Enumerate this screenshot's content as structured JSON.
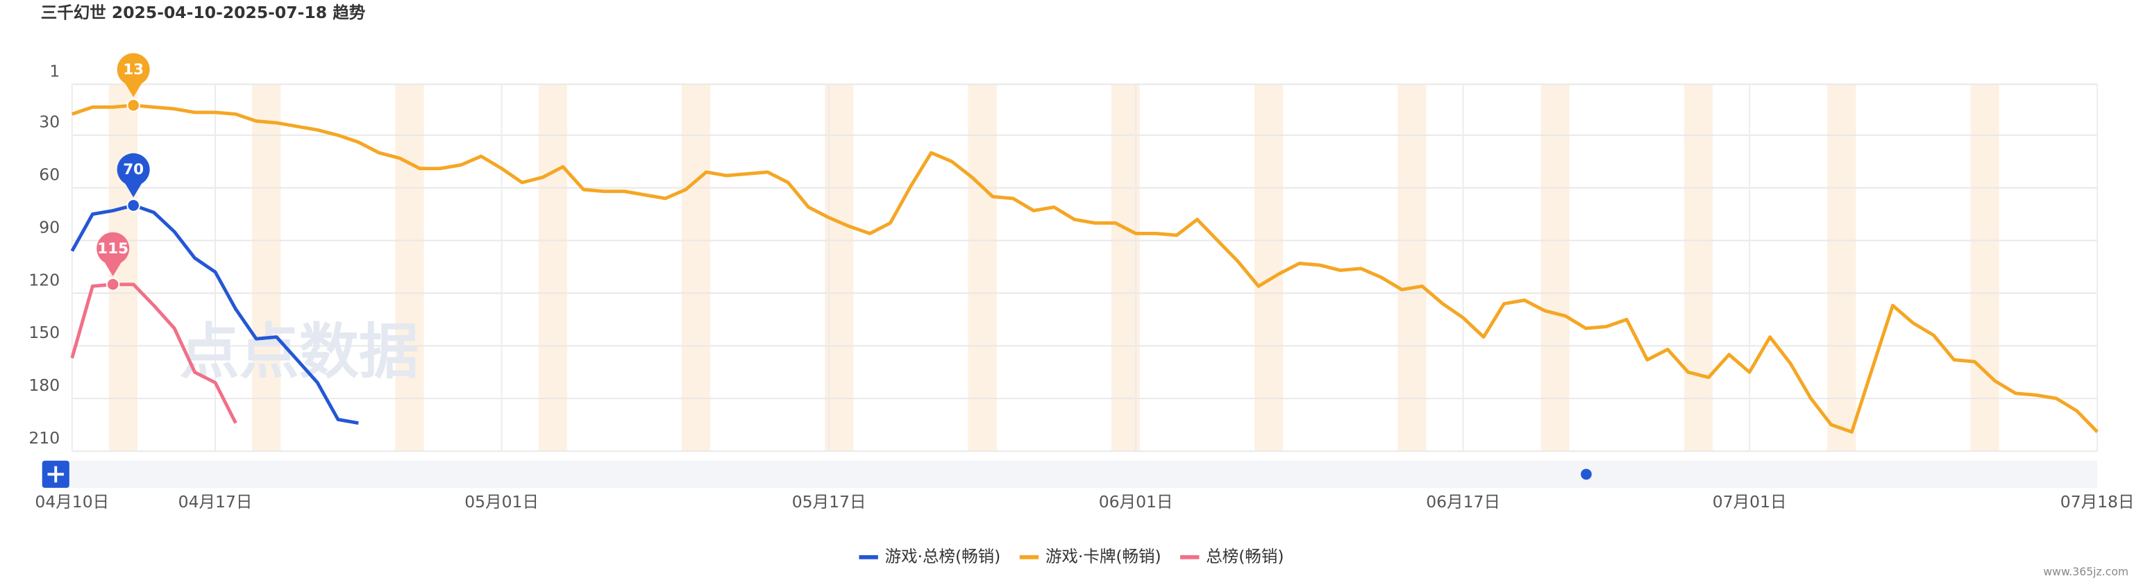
{
  "chart_data": {
    "type": "line",
    "title": "三千幻世 2025-04-10-2025-07-18 趋势",
    "watermark": "点点数据",
    "footer": "www.365jz.com",
    "x": [
      "2025-04-10",
      "2025-04-11",
      "2025-04-12",
      "2025-04-13",
      "2025-04-14",
      "2025-04-15",
      "2025-04-16",
      "2025-04-17",
      "2025-04-18",
      "2025-04-19",
      "2025-04-20",
      "2025-04-21",
      "2025-04-22",
      "2025-04-23",
      "2025-04-24",
      "2025-04-25",
      "2025-04-26",
      "2025-04-27",
      "2025-04-28",
      "2025-04-29",
      "2025-04-30",
      "2025-05-01",
      "2025-05-02",
      "2025-05-03",
      "2025-05-04",
      "2025-05-05",
      "2025-05-06",
      "2025-05-07",
      "2025-05-08",
      "2025-05-09",
      "2025-05-10",
      "2025-05-11",
      "2025-05-12",
      "2025-05-13",
      "2025-05-14",
      "2025-05-15",
      "2025-05-16",
      "2025-05-17",
      "2025-05-18",
      "2025-05-19",
      "2025-05-20",
      "2025-05-21",
      "2025-05-22",
      "2025-05-23",
      "2025-05-24",
      "2025-05-25",
      "2025-05-26",
      "2025-05-27",
      "2025-05-28",
      "2025-05-29",
      "2025-05-30",
      "2025-05-31",
      "2025-06-01",
      "2025-06-02",
      "2025-06-03",
      "2025-06-04",
      "2025-06-05",
      "2025-06-06",
      "2025-06-07",
      "2025-06-08",
      "2025-06-09",
      "2025-06-10",
      "2025-06-11",
      "2025-06-12",
      "2025-06-13",
      "2025-06-14",
      "2025-06-15",
      "2025-06-16",
      "2025-06-17",
      "2025-06-18",
      "2025-06-19",
      "2025-06-20",
      "2025-06-21",
      "2025-06-22",
      "2025-06-23",
      "2025-06-24",
      "2025-06-25",
      "2025-06-26",
      "2025-06-27",
      "2025-06-28",
      "2025-06-29",
      "2025-06-30",
      "2025-07-01",
      "2025-07-02",
      "2025-07-03",
      "2025-07-04",
      "2025-07-05",
      "2025-07-06",
      "2025-07-07",
      "2025-07-08",
      "2025-07-09",
      "2025-07-10",
      "2025-07-11",
      "2025-07-12",
      "2025-07-13",
      "2025-07-14",
      "2025-07-15",
      "2025-07-16",
      "2025-07-17",
      "2025-07-18"
    ],
    "xlim": [
      "2025-04-10",
      "2025-07-18"
    ],
    "xticks": [
      {
        "value": "2025-04-10",
        "label": "04月10日"
      },
      {
        "value": "2025-04-17",
        "label": "04月17日"
      },
      {
        "value": "2025-05-01",
        "label": "05月01日"
      },
      {
        "value": "2025-05-17",
        "label": "05月17日"
      },
      {
        "value": "2025-06-01",
        "label": "06月01日"
      },
      {
        "value": "2025-06-17",
        "label": "06月17日"
      },
      {
        "value": "2025-07-01",
        "label": "07月01日"
      },
      {
        "value": "2025-07-18",
        "label": "07月18日"
      }
    ],
    "ylim": [
      1,
      210
    ],
    "y_inverted": true,
    "yticks": [
      1,
      30,
      60,
      90,
      120,
      150,
      180,
      210
    ],
    "grid": true,
    "legend": "bottom",
    "series": [
      {
        "name": "游戏·总榜(畅销)",
        "color": "#2457d6",
        "values": [
          96,
          75,
          73,
          70,
          74,
          85,
          100,
          108,
          129,
          146,
          145,
          158,
          171,
          192,
          194,
          null,
          null,
          null,
          null,
          null,
          null,
          null,
          null,
          null,
          null,
          null,
          null,
          null,
          null,
          null,
          null,
          null,
          null,
          null,
          null,
          null,
          null,
          null,
          null,
          null,
          null,
          null,
          null,
          null,
          null,
          null,
          null,
          null,
          null,
          null,
          null,
          null,
          null,
          null,
          null,
          null,
          null,
          null,
          null,
          null,
          null,
          null,
          null,
          null,
          null,
          null,
          null,
          null,
          null,
          null,
          null,
          null,
          null,
          null,
          null,
          null,
          null,
          null,
          null,
          null,
          null,
          null,
          null,
          null,
          null,
          null,
          null,
          null,
          null,
          null,
          null,
          null,
          null,
          null,
          null,
          null,
          null,
          null,
          null,
          null
        ]
      },
      {
        "name": "游戏·卡牌(畅销)",
        "color": "#f5a623",
        "values": [
          18,
          14,
          14,
          13,
          14,
          15,
          17,
          17,
          18,
          22,
          23,
          25,
          27,
          30,
          34,
          40,
          43,
          49,
          49,
          47,
          42,
          49,
          57,
          54,
          48,
          61,
          62,
          62,
          64,
          66,
          61,
          51,
          53,
          52,
          51,
          57,
          71,
          77,
          82,
          86,
          80,
          59,
          40,
          45,
          54,
          65,
          66,
          73,
          71,
          78,
          80,
          80,
          86,
          86,
          87,
          78,
          90,
          102,
          116,
          109,
          103,
          104,
          107,
          106,
          111,
          118,
          116,
          126,
          134,
          145,
          126,
          124,
          130,
          133,
          140,
          139,
          135,
          158,
          152,
          165,
          168,
          155,
          165,
          145,
          160,
          180,
          195,
          199,
          163,
          127,
          137,
          144,
          158,
          159,
          170,
          177,
          178,
          180,
          187,
          199
        ]
      },
      {
        "name": "总榜(畅销)",
        "color": "#f07088",
        "values": [
          157,
          116,
          115,
          115,
          127,
          140,
          165,
          171,
          194,
          null,
          null,
          null,
          null,
          null,
          null,
          null,
          null,
          null,
          null,
          null,
          null,
          null,
          null,
          null,
          null,
          null,
          null,
          null,
          null,
          null,
          null,
          null,
          null,
          null,
          null,
          null,
          null,
          null,
          null,
          null,
          null,
          null,
          null,
          null,
          null,
          null,
          null,
          null,
          null,
          null,
          null,
          null,
          null,
          null,
          null,
          null,
          null,
          null,
          null,
          null,
          null,
          null,
          null,
          null,
          null,
          null,
          null,
          null,
          null,
          null,
          null,
          null,
          null,
          null,
          null,
          null,
          null,
          null,
          null,
          null,
          null,
          null,
          null,
          null,
          null,
          null,
          null,
          null,
          null,
          null,
          null,
          null,
          null,
          null,
          null,
          null,
          null,
          null,
          null,
          null
        ]
      }
    ]
  }
}
